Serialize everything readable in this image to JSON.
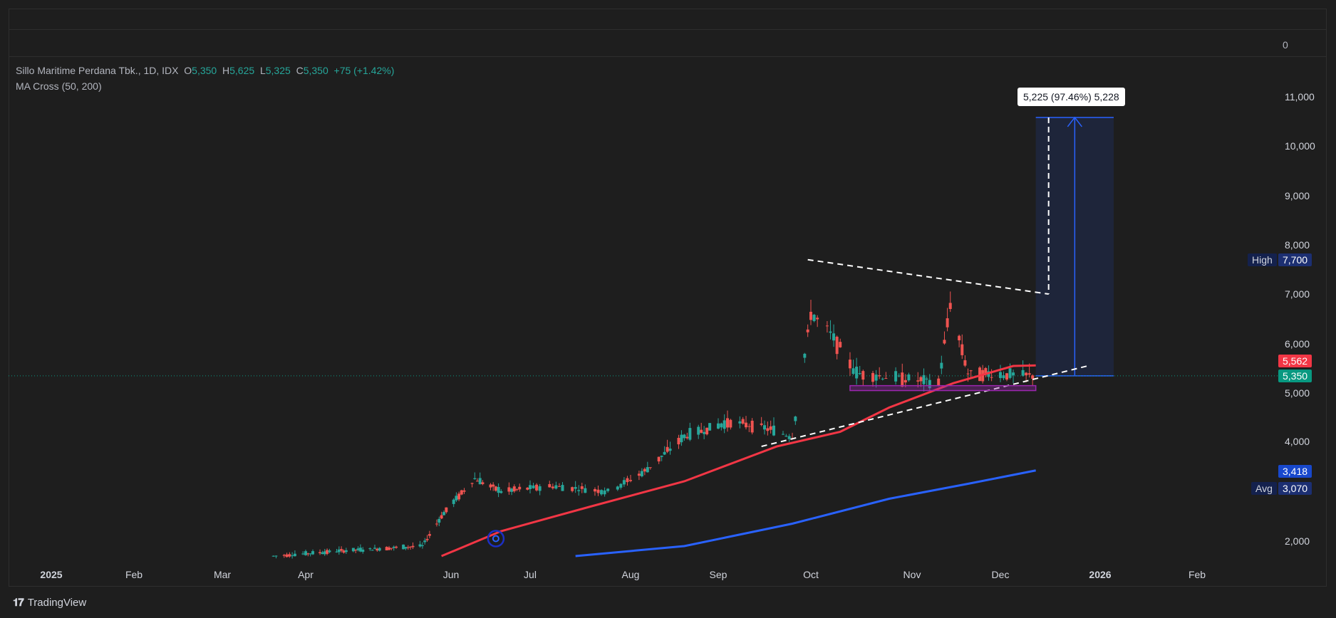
{
  "header": {
    "symbol": "Sillo Maritime Perdana Tbk., 1D, IDX",
    "o_label": "O",
    "o_value": "5,350",
    "h_label": "H",
    "h_value": "5,625",
    "l_label": "L",
    "l_value": "5,325",
    "c_label": "C",
    "c_value": "5,350",
    "change": "+75 (+1.42%)",
    "indicator": "MA Cross (50, 200)"
  },
  "measure_label": "5,225 (97.46%) 5,228",
  "badges": {
    "high_label": "High",
    "high_value": "7,700",
    "ma50_value": "5,562",
    "last_value": "5,350",
    "ma200_value": "3,418",
    "avg_label": "Avg",
    "avg_value": "3,070"
  },
  "axis_top_label": "0",
  "footer": {
    "brand": "TradingView"
  },
  "colors": {
    "up": "#26a69a",
    "down": "#ef5350",
    "ma50": "#f23645",
    "ma200": "#2962ff",
    "last": "#089981",
    "accent": "#2962ff"
  },
  "chart_data": {
    "type": "candlestick",
    "yticks": [
      "11,000",
      "10,000",
      "9,000",
      "8,000",
      "7,000",
      "6,000",
      "5,000",
      "4,000",
      "2,000"
    ],
    "ytick_values": [
      11000,
      10000,
      9000,
      8000,
      7000,
      6000,
      5000,
      4000,
      2000
    ],
    "xticks": [
      "2025",
      "Feb",
      "Mar",
      "Apr",
      "Jun",
      "Jul",
      "Aug",
      "Sep",
      "Oct",
      "Nov",
      "Dec",
      "2026",
      "Feb"
    ],
    "price_segments": [
      [
        "2025-03-20",
        1700
      ],
      [
        "2025-04-15",
        1800
      ],
      [
        "2025-05-20",
        1900
      ],
      [
        "2025-05-28",
        2500
      ],
      [
        "2025-06-10",
        3250
      ],
      [
        "2025-06-20",
        3000
      ],
      [
        "2025-07-08",
        3100
      ],
      [
        "2025-07-25",
        3000
      ],
      [
        "2025-08-06",
        3400
      ],
      [
        "2025-08-20",
        4100
      ],
      [
        "2025-09-05",
        4400
      ],
      [
        "2025-09-15",
        4300
      ],
      [
        "2025-09-25",
        4100
      ],
      [
        "2025-10-01",
        6600
      ],
      [
        "2025-10-06",
        6300
      ],
      [
        "2025-10-15",
        5400
      ],
      [
        "2025-10-28",
        5300
      ],
      [
        "2025-11-10",
        5200
      ],
      [
        "2025-11-14",
        6800
      ],
      [
        "2025-11-20",
        5400
      ],
      [
        "2025-12-12",
        5350
      ]
    ],
    "ma50": [
      [
        "2025-05-28",
        1700
      ],
      [
        "2025-06-20",
        2200
      ],
      [
        "2025-07-20",
        2700
      ],
      [
        "2025-08-20",
        3200
      ],
      [
        "2025-09-20",
        3900
      ],
      [
        "2025-10-10",
        4200
      ],
      [
        "2025-10-25",
        4700
      ],
      [
        "2025-11-15",
        5200
      ],
      [
        "2025-12-05",
        5550
      ],
      [
        "2025-12-12",
        5562
      ]
    ],
    "ma200": [
      [
        "2025-07-15",
        1700
      ],
      [
        "2025-08-20",
        1900
      ],
      [
        "2025-09-25",
        2350
      ],
      [
        "2025-10-25",
        2850
      ],
      [
        "2025-11-20",
        3150
      ],
      [
        "2025-12-12",
        3418
      ]
    ]
  }
}
